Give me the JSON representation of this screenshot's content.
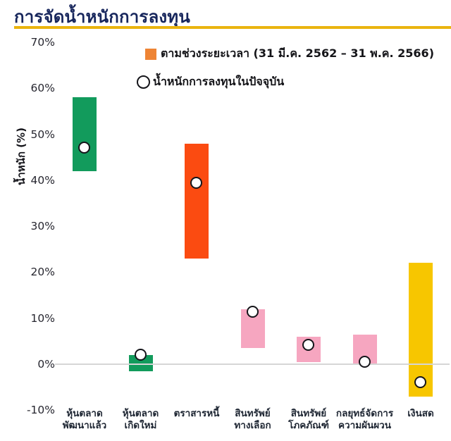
{
  "header": {
    "title": "การจัดน้ำหนักการลงทุน"
  },
  "legend": {
    "range_label": "ตามช่วงระยะเวลา (31 มี.ค. 2562 – 31 พ.ค. 2566)",
    "current_label": "น้ำหนักการลงทุนในปัจจุบัน"
  },
  "colors": {
    "title": "#17265c",
    "title_underline": "#eab40e",
    "legend_square": "#ee8434",
    "zero_gridline": "#d6d6d6",
    "marker_stroke": "#15151a",
    "green": "#129b5c",
    "orange": "#fb4b11",
    "pink": "#f6a6c0",
    "yellow": "#f7c600"
  },
  "chart_data": {
    "type": "bar",
    "subtype": "floating-range-bars-with-point-markers",
    "title": "การจัดน้ำหนักการลงทุน",
    "xlabel": "",
    "ylabel": "น้ำหนัก (%)",
    "ylim": [
      -10,
      70
    ],
    "ytick_values": [
      70,
      60,
      50,
      40,
      30,
      20,
      10,
      0,
      -10
    ],
    "ytick_labels": [
      "70%",
      "60%",
      "50%",
      "40%",
      "30%",
      "20%",
      "10%",
      "0%",
      "-10%"
    ],
    "grid": "zero-line-only",
    "legend_position": "top-inside",
    "categories": [
      {
        "label": "หุ้นตลาดพัฒนาแล้ว",
        "lines": [
          "หุ้นตลาด",
          "พัฒนาแล้ว"
        ]
      },
      {
        "label": "หุ้นตลาดเกิดใหม่",
        "lines": [
          "หุ้นตลาด",
          "เกิดใหม่"
        ]
      },
      {
        "label": "ตราสารหนี้",
        "lines": [
          "ตราสารหนี้"
        ]
      },
      {
        "label": "สินทรัพย์ทางเลือก",
        "lines": [
          "สินทรัพย์",
          "ทางเลือก"
        ]
      },
      {
        "label": "สินทรัพย์โภคภัณฑ์",
        "lines": [
          "สินทรัพย์",
          "โภคภัณฑ์"
        ]
      },
      {
        "label": "กลยุทธ์จัดการความผันผวน",
        "lines": [
          "กลยุทธ์จัดการ",
          "ความผันผวน"
        ]
      },
      {
        "label": "เงินสด",
        "lines": [
          "เงินสด"
        ]
      }
    ],
    "series": [
      {
        "name": "ตามช่วงระยะเวลา (31 มี.ค. 2562 – 31 พ.ค. 2566)",
        "type": "range",
        "ranges": [
          [
            42,
            58
          ],
          [
            -1.5,
            2
          ],
          [
            23,
            48
          ],
          [
            3.5,
            12
          ],
          [
            0.5,
            6
          ],
          [
            0,
            6.5
          ],
          [
            -7,
            22
          ]
        ]
      },
      {
        "name": "น้ำหนักการลงทุนในปัจจุบัน",
        "type": "point",
        "values": [
          47,
          2,
          39.3,
          11.3,
          4.2,
          0.5,
          -4
        ]
      }
    ],
    "bar_colors": [
      "#129b5c",
      "#129b5c",
      "#fb4b11",
      "#f6a6c0",
      "#f6a6c0",
      "#f6a6c0",
      "#f7c600"
    ]
  }
}
